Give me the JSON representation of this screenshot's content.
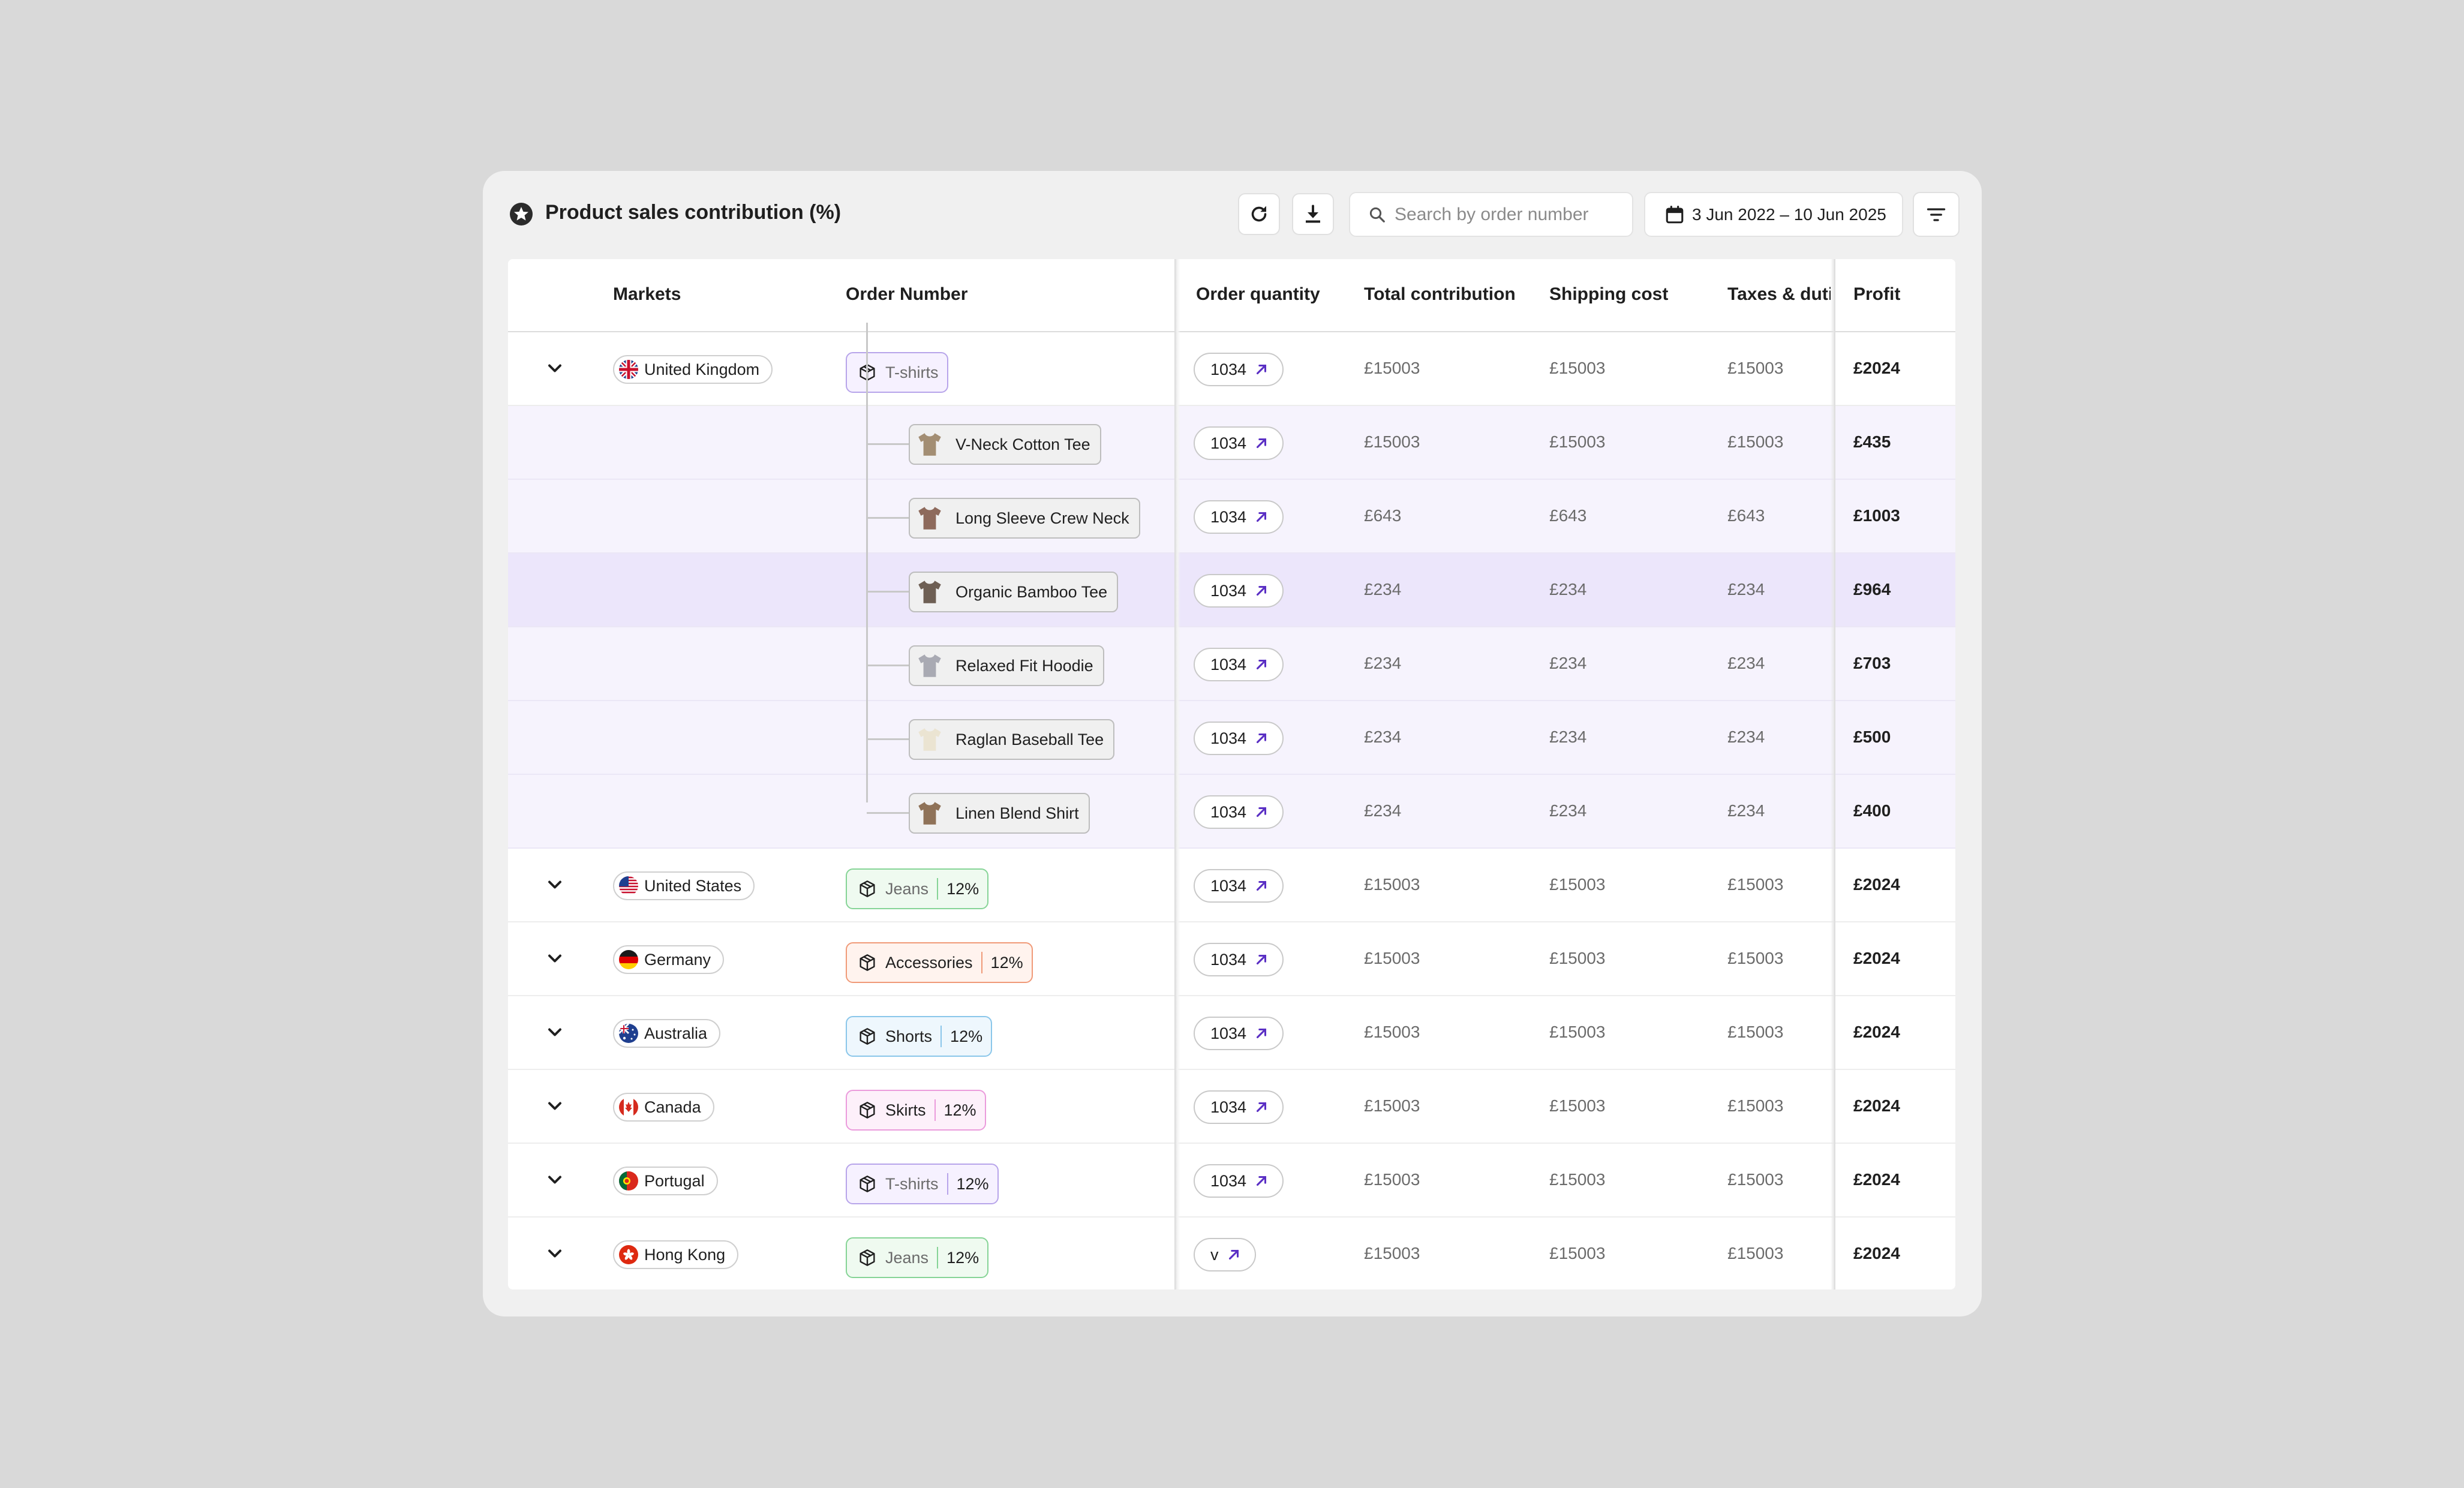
{
  "header": {
    "title": "Product sales contribution (%)",
    "title_icon": "star-badge-icon",
    "search_placeholder": "Search by order number",
    "date_range": "3 Jun 2022 – 10 Jun 2025"
  },
  "columns": [
    "Markets",
    "Order Number",
    "Order quantity",
    "Total contribution",
    "Shipping cost",
    "Taxes & duties",
    "Profit"
  ],
  "colors": {
    "accent_purple": "#6b3fd6",
    "highlight_row": "#ece6fb",
    "sub_row": "#f6f3fd"
  },
  "rows": [
    {
      "market": "United Kingdom",
      "flag": "uk-flag-icon",
      "category": "T-shirts",
      "category_color": "purple",
      "qty": "1034",
      "total": "£15003",
      "shipping": "£15003",
      "taxes": "£15003",
      "profit": "£2024"
    },
    {
      "market": "United States",
      "flag": "us-flag-icon",
      "category": "Jeans",
      "pct": "12%",
      "category_color": "green",
      "qty": "1034",
      "total": "£15003",
      "shipping": "£15003",
      "taxes": "£15003",
      "profit": "£2024"
    },
    {
      "market": "Germany",
      "flag": "de-flag-icon",
      "category": "Accessories",
      "pct": "12%",
      "category_color": "orange",
      "qty": "1034",
      "total": "£15003",
      "shipping": "£15003",
      "taxes": "£15003",
      "profit": "£2024"
    },
    {
      "market": "Australia",
      "flag": "au-flag-icon",
      "category": "Shorts",
      "pct": "12%",
      "category_color": "blue",
      "qty": "1034",
      "total": "£15003",
      "shipping": "£15003",
      "taxes": "£15003",
      "profit": "£2024"
    },
    {
      "market": "Canada",
      "flag": "ca-flag-icon",
      "category": "Skirts",
      "pct": "12%",
      "category_color": "pink",
      "qty": "1034",
      "total": "£15003",
      "shipping": "£15003",
      "taxes": "£15003",
      "profit": "£2024"
    },
    {
      "market": "Portugal",
      "flag": "pt-flag-icon",
      "category": "T-shirts",
      "pct": "12%",
      "category_color": "purple",
      "qty": "1034",
      "total": "£15003",
      "shipping": "£15003",
      "taxes": "£15003",
      "profit": "£2024"
    },
    {
      "market": "Hong Kong",
      "flag": "hk-flag-icon",
      "category": "Jeans",
      "pct": "12%",
      "category_color": "green",
      "qty": "v",
      "total": "£15003",
      "shipping": "£15003",
      "taxes": "£15003",
      "profit": "£2024"
    }
  ],
  "sub_rows": [
    {
      "product": "V-Neck Cotton Tee",
      "shirt_color": "#a38e73",
      "qty": "1034",
      "total": "£15003",
      "shipping": "£15003",
      "taxes": "£15003",
      "profit": "£435"
    },
    {
      "product": "Long Sleeve Crew Neck",
      "shirt_color": "#8e6a5c",
      "qty": "1034",
      "total": "£643",
      "shipping": "£643",
      "taxes": "£643",
      "profit": "£1003"
    },
    {
      "product": "Organic Bamboo Tee",
      "shirt_color": "#6e5f54",
      "qty": "1034",
      "total": "£234",
      "shipping": "£234",
      "taxes": "£234",
      "profit": "£964"
    },
    {
      "product": "Relaxed Fit Hoodie",
      "shirt_color": "#a9aab3",
      "qty": "1034",
      "total": "£234",
      "shipping": "£234",
      "taxes": "£234",
      "profit": "£703"
    },
    {
      "product": "Raglan Baseball Tee",
      "shirt_color": "#ebe4d2",
      "qty": "1034",
      "total": "£234",
      "shipping": "£234",
      "taxes": "£234",
      "profit": "£500"
    },
    {
      "product": "Linen Blend Shirt",
      "shirt_color": "#8f7258",
      "qty": "1034",
      "total": "£234",
      "shipping": "£234",
      "taxes": "£234",
      "profit": "£400"
    }
  ]
}
